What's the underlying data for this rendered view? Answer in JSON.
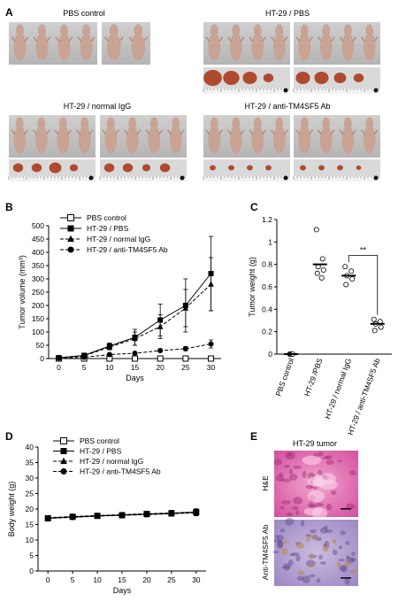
{
  "panel_a": {
    "letter": "A",
    "groups": [
      {
        "title": "PBS control"
      },
      {
        "title": "HT-29  / PBS"
      },
      {
        "title": "HT-29  / normal IgG"
      },
      {
        "title": "HT-29  / anti-TM4SF5 Ab"
      }
    ]
  },
  "chart_data": [
    {
      "panel": "B",
      "type": "line",
      "xlabel": "Days",
      "ylabel": "Tumor volume (mm³)",
      "xlim": [
        -2,
        32
      ],
      "ylim": [
        0,
        500
      ],
      "xticks": [
        0,
        5,
        10,
        15,
        20,
        25,
        30
      ],
      "yticks": [
        0,
        50,
        100,
        150,
        200,
        250,
        300,
        350,
        400,
        450,
        500
      ],
      "series": [
        {
          "name": "PBS control",
          "marker": "open-square",
          "dash": false,
          "x": [
            0,
            5,
            10,
            15,
            20,
            25,
            30
          ],
          "y": [
            0,
            0,
            0,
            0,
            0,
            0,
            0
          ],
          "err": [
            0,
            0,
            0,
            0,
            0,
            0,
            0
          ]
        },
        {
          "name": "HT-29 / PBS",
          "marker": "filled-square",
          "dash": false,
          "x": [
            0,
            5,
            10,
            15,
            20,
            25,
            30
          ],
          "y": [
            3,
            12,
            47,
            80,
            145,
            200,
            320
          ],
          "err": [
            2,
            5,
            12,
            30,
            60,
            100,
            140
          ]
        },
        {
          "name": "HT-29 / normal IgG",
          "marker": "filled-triangle",
          "dash": true,
          "x": [
            0,
            5,
            10,
            15,
            20,
            25,
            30
          ],
          "y": [
            3,
            10,
            43,
            75,
            120,
            190,
            280
          ],
          "err": [
            2,
            5,
            10,
            25,
            45,
            70,
            100
          ]
        },
        {
          "name": "HT-29 / anti-TM4SF5 Ab",
          "marker": "filled-circle",
          "dash": true,
          "x": [
            0,
            5,
            10,
            15,
            20,
            25,
            30
          ],
          "y": [
            2,
            5,
            15,
            20,
            30,
            37,
            55
          ],
          "err": [
            1,
            2,
            4,
            5,
            6,
            8,
            15
          ]
        }
      ]
    },
    {
      "panel": "C",
      "type": "scatter",
      "ylabel": "Tumor weight (g)",
      "ylim": [
        0,
        1.2
      ],
      "yticks": [
        0,
        0.2,
        0.4,
        0.6,
        0.8,
        1,
        1.2
      ],
      "categories": [
        "PBS control",
        "HT-29 /PBS",
        "HT-29 / normal IgG",
        "HT-29 / anti-TM4SF5 Ab"
      ],
      "groups": [
        {
          "points": [
            0,
            0,
            0,
            0
          ],
          "mean": 0
        },
        {
          "points": [
            1.11,
            0.85,
            0.78,
            0.75,
            0.72,
            0.68
          ],
          "mean": 0.8
        },
        {
          "points": [
            0.78,
            0.74,
            0.7,
            0.67,
            0.62
          ],
          "mean": 0.7
        },
        {
          "points": [
            0.31,
            0.29,
            0.27,
            0.24,
            0.21
          ],
          "mean": 0.27
        }
      ],
      "annotation": "**"
    },
    {
      "panel": "D",
      "type": "line",
      "xlabel": "Days",
      "ylabel": "Body weight (g)",
      "xlim": [
        -2,
        32
      ],
      "ylim": [
        0,
        40
      ],
      "xticks": [
        0,
        5,
        10,
        15,
        20,
        25,
        30
      ],
      "yticks": [
        0,
        5,
        10,
        15,
        20,
        25,
        30,
        35,
        40
      ],
      "series": [
        {
          "name": "PBS control",
          "marker": "open-square",
          "dash": false,
          "x": [
            0,
            5,
            10,
            15,
            20,
            25,
            30
          ],
          "y": [
            17.0,
            17.5,
            17.8,
            18.0,
            18.4,
            18.6,
            19.0
          ],
          "err": [
            0.5,
            0.6,
            0.6,
            0.6,
            0.7,
            0.7,
            0.9
          ]
        },
        {
          "name": "HT-29 / PBS",
          "marker": "filled-square",
          "dash": false,
          "x": [
            0,
            5,
            10,
            15,
            20,
            25,
            30
          ],
          "y": [
            17.1,
            17.4,
            17.8,
            18.1,
            18.3,
            18.6,
            18.9
          ],
          "err": [
            0.5,
            0.6,
            0.7,
            0.6,
            0.8,
            0.8,
            1.1
          ]
        },
        {
          "name": "HT-29 / normal IgG",
          "marker": "filled-triangle",
          "dash": true,
          "x": [
            0,
            5,
            10,
            15,
            20,
            25,
            30
          ],
          "y": [
            17.2,
            17.6,
            17.9,
            18.2,
            18.5,
            18.7,
            19.1
          ],
          "err": [
            0.5,
            0.6,
            0.6,
            0.7,
            0.7,
            0.9,
            1.0
          ]
        },
        {
          "name": "HT-29 / anti-TM4SF5 Ab",
          "marker": "filled-circle",
          "dash": true,
          "x": [
            0,
            5,
            10,
            15,
            20,
            25,
            30
          ],
          "y": [
            17.0,
            17.3,
            17.7,
            18.0,
            18.2,
            18.5,
            18.8
          ],
          "err": [
            0.5,
            0.5,
            0.6,
            0.6,
            0.7,
            0.8,
            0.9
          ]
        }
      ]
    }
  ],
  "panel_b": {
    "letter": "B"
  },
  "panel_c": {
    "letter": "C"
  },
  "panel_d": {
    "letter": "D"
  },
  "panel_e": {
    "letter": "E",
    "title": "HT-29 tumor",
    "row1_label": "H&E",
    "row2_label": "Anti-TM4SF5  Ab"
  },
  "colors": {
    "he_stain": "#d95fa6",
    "ihc_stain": "#a896c8",
    "mouse": "#c9a393",
    "tumor": "#b04a2f"
  }
}
